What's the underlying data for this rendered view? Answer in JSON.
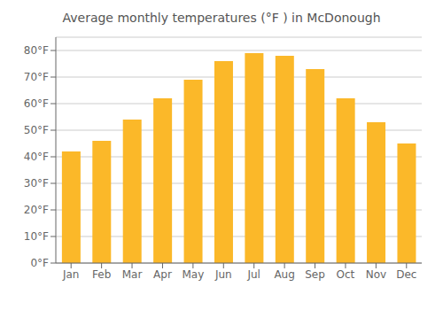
{
  "chart_data": {
    "type": "bar",
    "title": "Average monthly temperatures (°F ) in McDonough",
    "categories": [
      "Jan",
      "Feb",
      "Mar",
      "Apr",
      "May",
      "Jun",
      "Jul",
      "Aug",
      "Sep",
      "Oct",
      "Nov",
      "Dec"
    ],
    "values": [
      42,
      46,
      54,
      62,
      69,
      76,
      79,
      78,
      73,
      62,
      53,
      45
    ],
    "color": "#FBB829",
    "ylim": [
      0,
      85
    ],
    "yticks": [
      {
        "value": 0,
        "label": "0°F"
      },
      {
        "value": 10,
        "label": "10°F"
      },
      {
        "value": 20,
        "label": "20°F"
      },
      {
        "value": 30,
        "label": "30°F"
      },
      {
        "value": 40,
        "label": "40°F"
      },
      {
        "value": 50,
        "label": "50°F"
      },
      {
        "value": 60,
        "label": "60°F"
      },
      {
        "value": 70,
        "label": "70°F"
      },
      {
        "value": 80,
        "label": "80°F"
      }
    ],
    "grid": true
  }
}
